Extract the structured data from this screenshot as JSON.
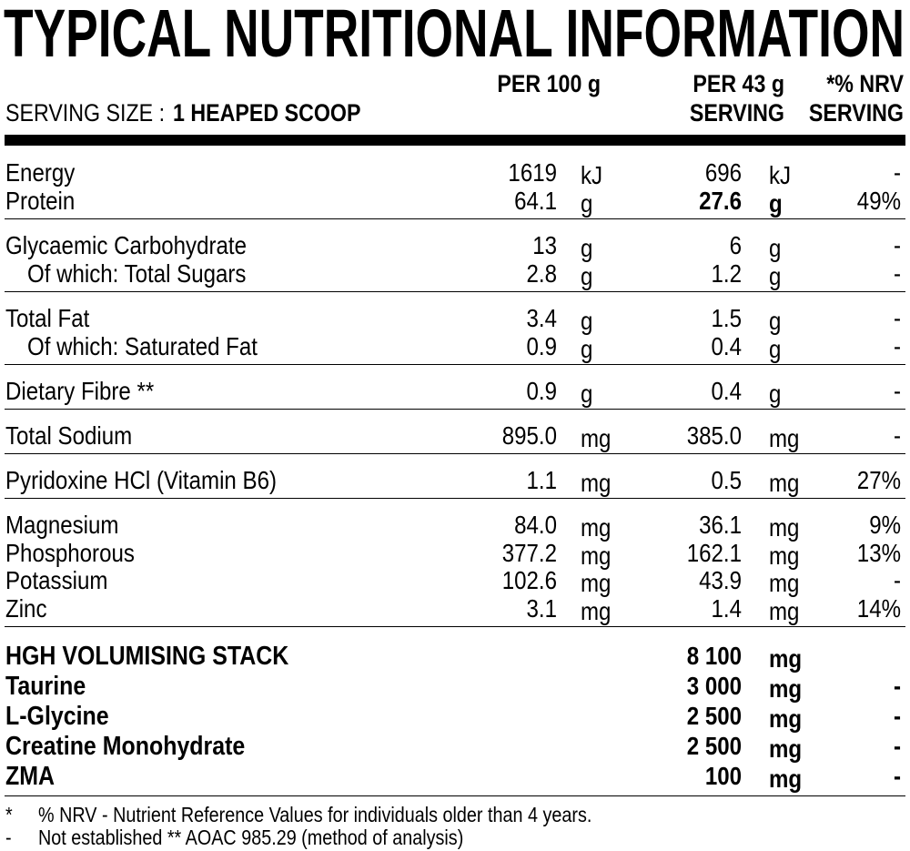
{
  "title": "TYPICAL NUTRITIONAL INFORMATION",
  "serving_size": {
    "label": "SERVING SIZE :",
    "value": "1 HEAPED SCOOP"
  },
  "columns": {
    "per_100g": "PER 100 g",
    "per_serving": [
      "PER 43 g",
      "SERVING"
    ],
    "nrv": [
      "*% NRV",
      "SERVING"
    ]
  },
  "groups": [
    {
      "rows": [
        {
          "name": "Energy",
          "per_100g": "1619",
          "unit_100g": "kJ",
          "per_serving": "696",
          "unit_serving": "kJ",
          "nrv": "-"
        },
        {
          "name": "Protein",
          "per_100g": "64.1",
          "unit_100g": "g",
          "per_serving": "27.6",
          "unit_serving": "g",
          "nrv": "49%",
          "bold_serving": true
        }
      ]
    },
    {
      "rows": [
        {
          "name": "Glycaemic Carbohydrate",
          "per_100g": "13",
          "unit_100g": "g",
          "per_serving": "6",
          "unit_serving": "g",
          "nrv": "-"
        },
        {
          "name": "Of which: Total Sugars",
          "per_100g": "2.8",
          "unit_100g": "g",
          "per_serving": "1.2",
          "unit_serving": "g",
          "nrv": "-",
          "indent": true
        }
      ]
    },
    {
      "rows": [
        {
          "name": "Total Fat",
          "per_100g": "3.4",
          "unit_100g": "g",
          "per_serving": "1.5",
          "unit_serving": "g",
          "nrv": "-"
        },
        {
          "name": "Of which: Saturated Fat",
          "per_100g": "0.9",
          "unit_100g": "g",
          "per_serving": "0.4",
          "unit_serving": "g",
          "nrv": "-",
          "indent": true
        }
      ]
    },
    {
      "rows": [
        {
          "name": "Dietary Fibre **",
          "per_100g": "0.9",
          "unit_100g": "g",
          "per_serving": "0.4",
          "unit_serving": "g",
          "nrv": "-"
        }
      ]
    },
    {
      "rows": [
        {
          "name": "Total Sodium",
          "per_100g": "895.0",
          "unit_100g": "mg",
          "per_serving": "385.0",
          "unit_serving": "mg",
          "nrv": "-"
        }
      ]
    },
    {
      "rows": [
        {
          "name": "Pyridoxine HCl (Vitamin B6)",
          "per_100g": "1.1",
          "unit_100g": "mg",
          "per_serving": "0.5",
          "unit_serving": "mg",
          "nrv": "27%"
        }
      ]
    },
    {
      "rows": [
        {
          "name": "Magnesium",
          "per_100g": "84.0",
          "unit_100g": "mg",
          "per_serving": "36.1",
          "unit_serving": "mg",
          "nrv": "9%"
        },
        {
          "name": "Phosphorous",
          "per_100g": "377.2",
          "unit_100g": "mg",
          "per_serving": "162.1",
          "unit_serving": "mg",
          "nrv": "13%"
        },
        {
          "name": "Potassium",
          "per_100g": "102.6",
          "unit_100g": "mg",
          "per_serving": "43.9",
          "unit_serving": "mg",
          "nrv": "-"
        },
        {
          "name": "Zinc",
          "per_100g": "3.1",
          "unit_100g": "mg",
          "per_serving": "1.4",
          "unit_serving": "mg",
          "nrv": "14%"
        }
      ]
    },
    {
      "bold": true,
      "rows": [
        {
          "name": "HGH VOLUMISING STACK",
          "per_serving": "8 100",
          "unit_serving": "mg"
        },
        {
          "name": "Taurine",
          "per_serving": "3 000",
          "unit_serving": "mg",
          "nrv": "-"
        },
        {
          "name": "L-Glycine",
          "per_serving": "2 500",
          "unit_serving": "mg",
          "nrv": "-"
        },
        {
          "name": "Creatine Monohydrate",
          "per_serving": "2 500",
          "unit_serving": "mg",
          "nrv": "-"
        },
        {
          "name": "ZMA",
          "per_serving": "100",
          "unit_serving": "mg",
          "nrv": "-"
        }
      ]
    }
  ],
  "footnotes": [
    {
      "mark": "*",
      "text": "% NRV - Nutrient Reference Values for individuals older than 4 years."
    },
    {
      "mark": "-",
      "text": "Not established ** AOAC 985.29 (method of analysis)"
    }
  ]
}
